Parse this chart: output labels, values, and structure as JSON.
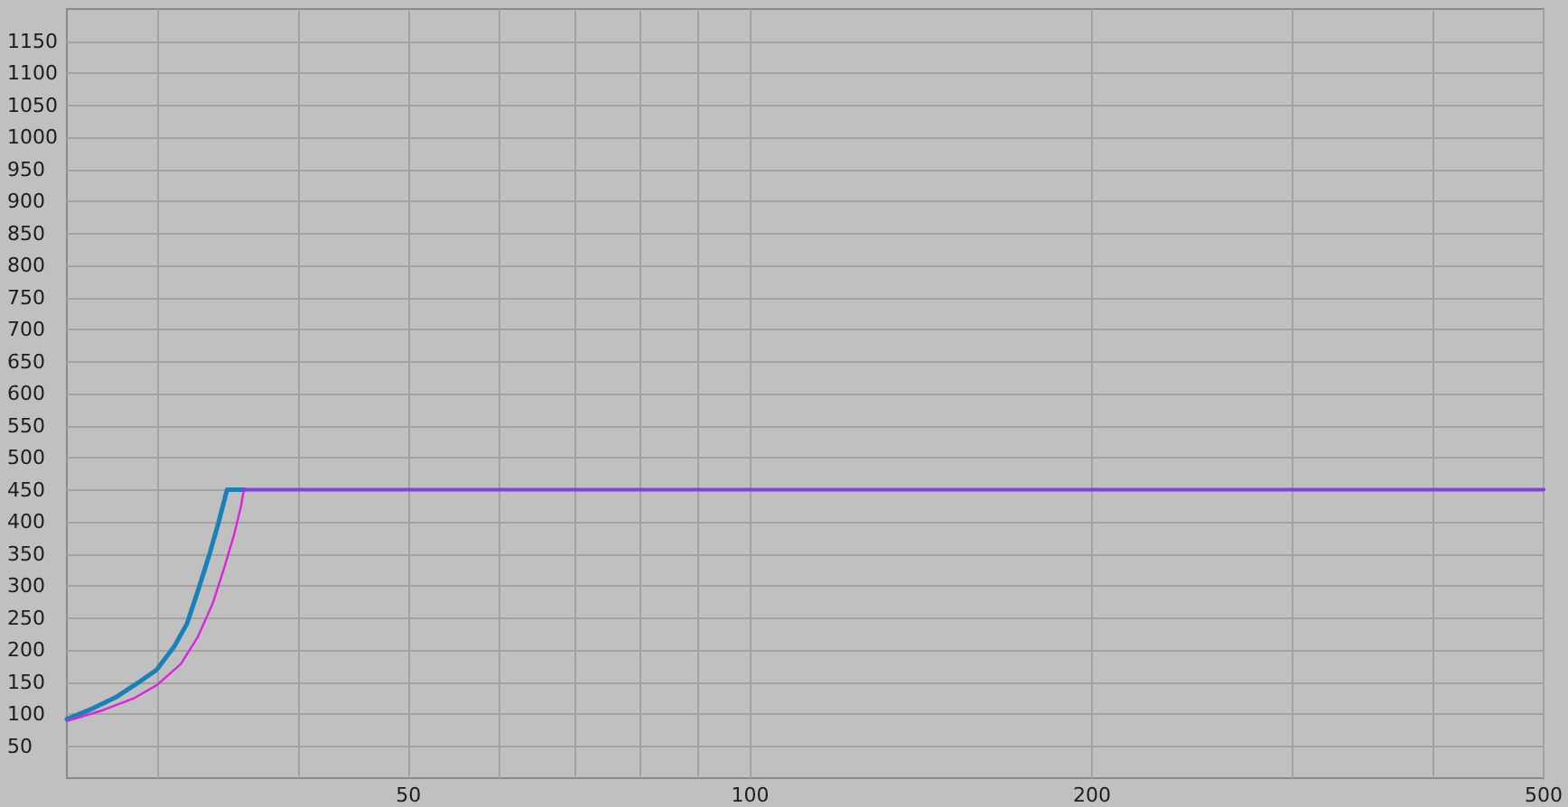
{
  "chart_data": {
    "type": "line",
    "log": "x",
    "grid": true,
    "marker": "none",
    "line_style": "solid",
    "xlim": [
      25,
      500
    ],
    "xticks": [
      {
        "value": 30,
        "label": null
      },
      {
        "value": 40,
        "label": null
      },
      50,
      {
        "value": 60,
        "label": null
      },
      {
        "value": 70,
        "label": null
      },
      {
        "value": 80,
        "label": null
      },
      {
        "value": 90,
        "label": null
      },
      100,
      200,
      {
        "value": 300,
        "label": null
      },
      {
        "value": 400,
        "label": null
      },
      500
    ],
    "ylim": [
      0,
      1200
    ],
    "yticks": [
      50,
      100,
      150,
      200,
      250,
      300,
      350,
      400,
      450,
      500,
      550,
      600,
      650,
      700,
      750,
      800,
      850,
      900,
      950,
      1000,
      1050,
      1100,
      1150
    ],
    "series": [
      {
        "color": "#1a80b8",
        "x": [
          25,
          26.3,
          27.6,
          28.9,
          30.0,
          31.1,
          31.9,
          32.6,
          33.4,
          34.0,
          34.6,
          35.8
        ],
        "values": [
          92,
          108,
          126,
          149,
          169,
          206,
          241,
          291,
          350,
          398,
          450,
          450
        ]
      },
      {
        "color": "#e020e0",
        "x": [
          25,
          26.9,
          28.6,
          30.0,
          31.5,
          32.6,
          33.6,
          34.4,
          35.1,
          35.6,
          35.8
        ],
        "values": [
          89,
          106,
          124,
          145,
          178,
          220,
          272,
          328,
          380,
          425,
          450
        ]
      },
      {
        "color": "#8040e0",
        "x": [
          35.8,
          500
        ],
        "values": [
          450,
          450
        ]
      }
    ]
  }
}
